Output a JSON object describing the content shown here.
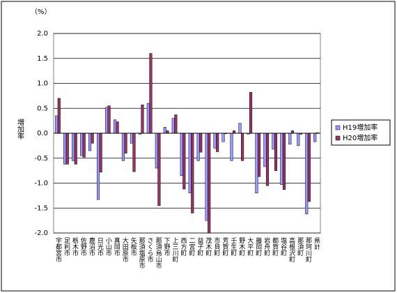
{
  "chart_data": {
    "type": "bar",
    "unit_label": "（%）",
    "y_label": "増加率",
    "categories": [
      "宇都宮市",
      "足利市",
      "栃木市",
      "佐野市",
      "鹿沼市",
      "日光市",
      "小山市",
      "真岡市",
      "大田原市",
      "矢板市",
      "那須塩原市",
      "さくら市",
      "那須烏山市",
      "下野市",
      "上三川町",
      "西方町",
      "二宮町",
      "益子町",
      "茂木町",
      "市貝町",
      "芳賀町",
      "壬生町",
      "野木町",
      "大平町",
      "藤岡町",
      "岩舟町",
      "都賀町",
      "塩谷町",
      "高根沢町",
      "那須町",
      "那珂川町",
      "県計"
    ],
    "series": [
      {
        "name": "H19増加率",
        "color": "#9999ff",
        "values": [
          0.35,
          -0.62,
          -0.55,
          -0.45,
          -0.35,
          -1.33,
          0.52,
          0.27,
          -0.55,
          -0.2,
          -0.02,
          0.6,
          -0.7,
          0.12,
          0.3,
          -0.85,
          -1.2,
          -0.55,
          -1.75,
          -0.3,
          -0.17,
          -0.55,
          0.2,
          -0.02,
          -1.2,
          -0.67,
          -0.32,
          -1.03,
          -0.22,
          -0.25,
          -1.62,
          -0.17
        ]
      },
      {
        "name": "H20増加率",
        "color": "#993366",
        "values": [
          0.7,
          -0.62,
          -0.62,
          -0.48,
          -0.2,
          -0.78,
          0.55,
          0.23,
          -0.4,
          -0.77,
          0.57,
          1.6,
          -1.45,
          0.05,
          0.37,
          -1.12,
          -1.6,
          -0.38,
          -2.0,
          -0.37,
          -0.01,
          0.05,
          -0.55,
          0.82,
          -0.87,
          -1.05,
          -0.75,
          -1.13,
          0.05,
          -0.02,
          -1.37,
          0.01
        ]
      }
    ],
    "ylim": [
      -2.0,
      2.0
    ],
    "yticks": [
      {
        "value": -2.0,
        "label": "-2.0"
      },
      {
        "value": -1.5,
        "label": "-1.5"
      },
      {
        "value": -1.0,
        "label": "-1.0"
      },
      {
        "value": -0.5,
        "label": "-0.5"
      },
      {
        "value": 0.0,
        "label": "0.0"
      },
      {
        "value": 0.5,
        "label": "0.5"
      },
      {
        "value": 1.0,
        "label": "1.0"
      },
      {
        "value": 1.5,
        "label": "1.5"
      },
      {
        "value": 2.0,
        "label": "2.0"
      }
    ],
    "grid": true
  }
}
